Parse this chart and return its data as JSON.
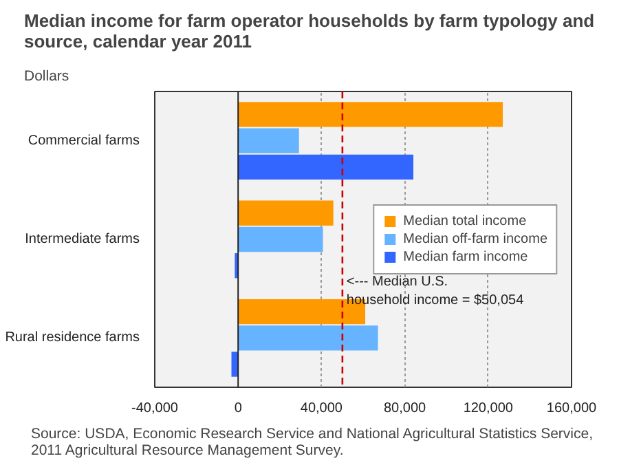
{
  "chart_data": {
    "type": "bar",
    "orientation": "horizontal",
    "title": "Median income for farm operator households by farm typology and\nsource, calendar year 2011",
    "xlabel": "Dollars",
    "categories": [
      "Commercial farms",
      "Intermediate farms",
      "Rural residence farms"
    ],
    "series": [
      {
        "name": "Median total income",
        "color": "#ff9900",
        "values": [
          127000,
          45700,
          61000
        ]
      },
      {
        "name": "Median off-farm income",
        "color": "#66b3ff",
        "values": [
          29200,
          40700,
          67100
        ]
      },
      {
        "name": "Median farm income",
        "color": "#3366ff",
        "values": [
          84100,
          -1600,
          -3200
        ]
      }
    ],
    "xlim": [
      -40000,
      160000
    ],
    "xticks": [
      {
        "value": -40000,
        "label": "-40,000"
      },
      0,
      {
        "value": 40000,
        "label": "40,000"
      },
      {
        "value": 80000,
        "label": "80,000"
      },
      {
        "value": 120000,
        "label": "120,000"
      },
      {
        "value": 160000,
        "label": "160,000"
      }
    ],
    "grid": "x",
    "legend": "right",
    "ref_lines": [
      {
        "axis": "x",
        "value": 50054,
        "label": "<--- Median U.S.\n      household income = $50,054",
        "color": "#cc0000",
        "line_style": "dashed"
      }
    ],
    "annotations": [
      "Source: USDA, Economic Research Service and National Agricultural Statistics Service,\n2011 Agricultural Resource Management Survey."
    ]
  }
}
